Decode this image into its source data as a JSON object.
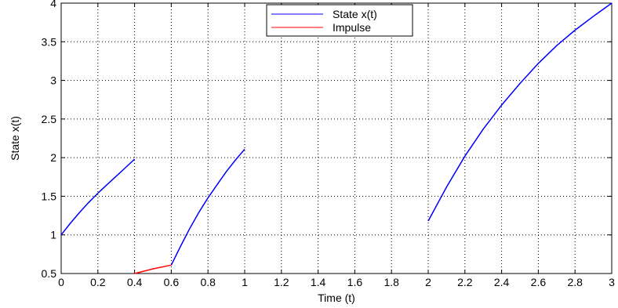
{
  "chart_data": {
    "type": "line",
    "title": "",
    "xlabel": "Time (t)",
    "ylabel": "State x(t)",
    "xlim": [
      0,
      3
    ],
    "ylim": [
      0.5,
      4
    ],
    "grid": true,
    "legend_position": "top-center",
    "x_ticks": [
      0,
      0.2,
      0.4,
      0.6,
      0.8,
      1,
      1.2,
      1.4,
      1.6,
      1.8,
      2,
      2.2,
      2.4,
      2.6,
      2.8,
      3
    ],
    "x_tick_labels": [
      "0",
      "0.2",
      "0.4",
      "0.6",
      "0.8",
      "1",
      "1.2",
      "1.4",
      "1.6",
      "1.8",
      "2",
      "2.2",
      "2.4",
      "2.6",
      "2.8",
      "3"
    ],
    "y_ticks": [
      0.5,
      1,
      1.5,
      2,
      2.5,
      3,
      3.5,
      4
    ],
    "y_tick_labels": [
      "0.5",
      "1",
      "1.5",
      "2",
      "2.5",
      "3",
      "3.5",
      "4"
    ],
    "series": [
      {
        "name": "State x(t)",
        "color": "#0000ff",
        "segments": [
          [
            [
              0,
              1.0
            ],
            [
              0.05,
              1.15
            ],
            [
              0.1,
              1.29
            ],
            [
              0.15,
              1.42
            ],
            [
              0.2,
              1.54
            ],
            [
              0.25,
              1.65
            ],
            [
              0.3,
              1.76
            ],
            [
              0.35,
              1.87
            ],
            [
              0.4,
              1.98
            ]
          ],
          [
            [
              0.6,
              0.61
            ],
            [
              0.65,
              0.85
            ],
            [
              0.7,
              1.08
            ],
            [
              0.75,
              1.29
            ],
            [
              0.8,
              1.48
            ],
            [
              0.85,
              1.65
            ],
            [
              0.9,
              1.82
            ],
            [
              0.95,
              1.97
            ],
            [
              1.0,
              2.11
            ]
          ],
          [
            [
              2.0,
              1.18
            ],
            [
              2.1,
              1.62
            ],
            [
              2.2,
              2.02
            ],
            [
              2.3,
              2.37
            ],
            [
              2.4,
              2.68
            ],
            [
              2.5,
              2.96
            ],
            [
              2.6,
              3.22
            ],
            [
              2.7,
              3.45
            ],
            [
              2.8,
              3.65
            ],
            [
              2.9,
              3.83
            ],
            [
              3.0,
              4.0
            ]
          ]
        ]
      },
      {
        "name": "Impulse",
        "color": "#ff0000",
        "segments": [
          [
            [
              0.4,
              0.5
            ],
            [
              0.5,
              0.56
            ],
            [
              0.6,
              0.61
            ]
          ]
        ]
      }
    ]
  }
}
